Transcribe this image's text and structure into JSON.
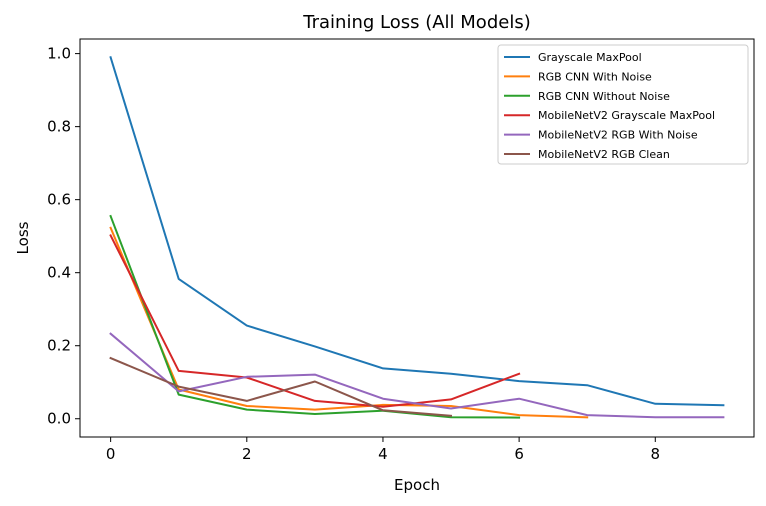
{
  "chart_data": {
    "type": "line",
    "title": "Training Loss (All Models)",
    "xlabel": "Epoch",
    "ylabel": "Loss",
    "xlim": [
      -0.45,
      9.45
    ],
    "ylim": [
      -0.05,
      1.04
    ],
    "xticks": [
      0,
      2,
      4,
      6,
      8
    ],
    "xtick_labels": [
      "0",
      "2",
      "4",
      "6",
      "8"
    ],
    "yticks": [
      0.0,
      0.2,
      0.4,
      0.6,
      0.8,
      1.0
    ],
    "ytick_labels": [
      "0.0",
      "0.2",
      "0.4",
      "0.6",
      "0.8",
      "1.0"
    ],
    "grid": false,
    "legend_position": "top-right",
    "series": [
      {
        "name": "Grayscale MaxPool",
        "color": "#1f77b4",
        "x": [
          0,
          1,
          2,
          3,
          4,
          5,
          6,
          7,
          8,
          9
        ],
        "values": [
          0.99,
          0.383,
          0.255,
          0.198,
          0.138,
          0.123,
          0.103,
          0.092,
          0.041,
          0.037
        ]
      },
      {
        "name": "RGB CNN With Noise",
        "color": "#ff7f0e",
        "x": [
          0,
          1,
          2,
          3,
          4,
          5,
          6,
          7
        ],
        "values": [
          0.523,
          0.08,
          0.035,
          0.025,
          0.038,
          0.035,
          0.01,
          0.004
        ]
      },
      {
        "name": "RGB CNN Without Noise",
        "color": "#2ca02c",
        "x": [
          0,
          1,
          2,
          3,
          4,
          5,
          6
        ],
        "values": [
          0.555,
          0.066,
          0.025,
          0.013,
          0.022,
          0.004,
          0.003
        ]
      },
      {
        "name": "MobileNetV2 Grayscale MaxPool",
        "color": "#d62728",
        "x": [
          0,
          1,
          2,
          3,
          4,
          5,
          6
        ],
        "values": [
          0.502,
          0.131,
          0.113,
          0.049,
          0.033,
          0.053,
          0.123
        ]
      },
      {
        "name": "MobileNetV2 RGB With Noise",
        "color": "#9467bd",
        "x": [
          0,
          1,
          2,
          3,
          4,
          5,
          6,
          7,
          8,
          9
        ],
        "values": [
          0.233,
          0.075,
          0.115,
          0.121,
          0.055,
          0.028,
          0.055,
          0.01,
          0.004,
          0.004
        ]
      },
      {
        "name": "MobileNetV2 RGB Clean",
        "color": "#8c564b",
        "x": [
          0,
          1,
          2,
          3,
          4,
          5
        ],
        "values": [
          0.166,
          0.088,
          0.049,
          0.102,
          0.023,
          0.008
        ]
      }
    ]
  }
}
